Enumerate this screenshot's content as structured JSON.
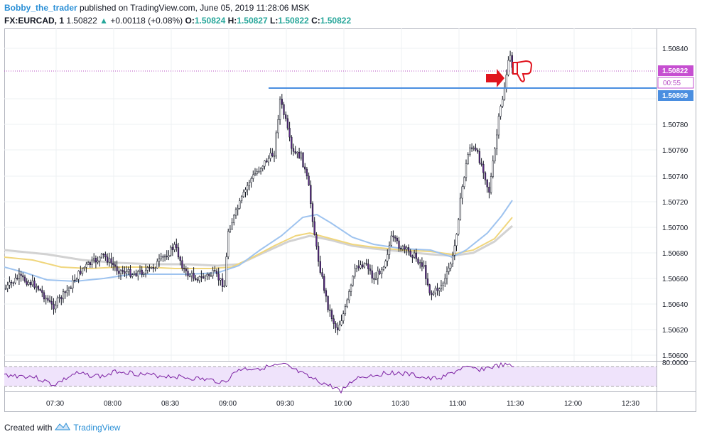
{
  "header": {
    "username": "Bobby_the_trader",
    "published_text": " published on TradingView.com, June 05, 2019 11:28:06 MSK",
    "symbol": "FX:EURCAD, 1",
    "last": "1.50822",
    "change": "+0.00118 (+0.08%)",
    "o_label": "O:",
    "o_value": "1.50824",
    "h_label": "H:",
    "h_value": "1.50827",
    "l_label": "L:",
    "l_value": "1.50822",
    "c_label": "C:",
    "c_value": "1.50822"
  },
  "price_axis": {
    "ticks": [
      "1.50840",
      "1.50780",
      "1.50760",
      "1.50740",
      "1.50720",
      "1.50700",
      "1.50680",
      "1.50660",
      "1.50640",
      "1.50620",
      "1.50600"
    ],
    "current_price_label": "1.50822",
    "countdown_label": "00:55",
    "level_label": "1.50809"
  },
  "rsi_axis": {
    "label": "80.0000"
  },
  "time_axis": {
    "ticks": [
      "07:30",
      "08:00",
      "08:30",
      "09:00",
      "09:30",
      "10:00",
      "10:30",
      "11:00",
      "11:30",
      "12:00",
      "12:30"
    ]
  },
  "colors": {
    "current_price": "#b84ec4",
    "level": "#4a8ee0",
    "rsi": "#7b1fa2",
    "ema_fast": "#9ec3ef",
    "ema_mid": "#f0d67c",
    "ema_slow": "#d2d2d2",
    "annotation": "#e0141e"
  },
  "annotations": {
    "arrow": "right-arrow-icon",
    "thumb": "thumbs-down-icon"
  },
  "footer": {
    "created_with": "Created with",
    "brand": "TradingView"
  }
}
